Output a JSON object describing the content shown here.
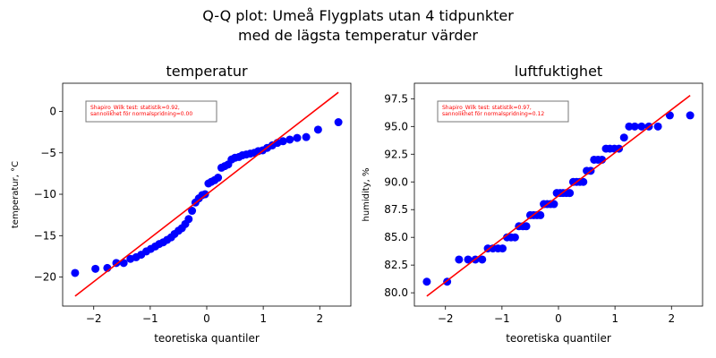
{
  "figure": {
    "title_line1": "Q-Q plot: Umeå Flygplats utan 4 tidpunkter",
    "title_line2": "med de lägsta temperatur värder"
  },
  "chart_data": [
    {
      "type": "scatter",
      "title": "temperatur",
      "xlabel": "teoretiska quantiler",
      "ylabel": "temperatur, °C",
      "xlim": [
        -2.55,
        2.55
      ],
      "ylim": [
        -23.5,
        3.4
      ],
      "xticks": [
        -2,
        -1,
        0,
        1,
        2
      ],
      "xtick_labels": [
        "−2",
        "−1",
        "0",
        "1",
        "2"
      ],
      "yticks": [
        -20,
        -15,
        -10,
        -5,
        0
      ],
      "ytick_labels": [
        "−20",
        "−15",
        "−10",
        "−5",
        "0"
      ],
      "annotation": [
        "Shapiro_Wilk test: statistik=0.92,",
        "sannolikhet för normalspridning=0.00"
      ],
      "fit_line": {
        "x": [
          -2.33,
          2.33
        ],
        "y": [
          -22.3,
          2.3
        ],
        "color": "#ff0000"
      },
      "point_color": "#0000ff",
      "points": [
        [
          -2.33,
          -19.5
        ],
        [
          -1.97,
          -19.0
        ],
        [
          -1.76,
          -18.9
        ],
        [
          -1.6,
          -18.3
        ],
        [
          -1.47,
          -18.3
        ],
        [
          -1.35,
          -17.8
        ],
        [
          -1.25,
          -17.6
        ],
        [
          -1.16,
          -17.3
        ],
        [
          -1.07,
          -16.9
        ],
        [
          -0.99,
          -16.6
        ],
        [
          -0.91,
          -16.3
        ],
        [
          -0.84,
          -16.0
        ],
        [
          -0.77,
          -15.8
        ],
        [
          -0.7,
          -15.5
        ],
        [
          -0.63,
          -15.2
        ],
        [
          -0.57,
          -14.8
        ],
        [
          -0.5,
          -14.4
        ],
        [
          -0.44,
          -14.1
        ],
        [
          -0.38,
          -13.6
        ],
        [
          -0.32,
          -13.0
        ],
        [
          -0.26,
          -12.0
        ],
        [
          -0.2,
          -11.0
        ],
        [
          -0.14,
          -10.5
        ],
        [
          -0.08,
          -10.1
        ],
        [
          -0.03,
          -10.0
        ],
        [
          0.03,
          -8.7
        ],
        [
          0.08,
          -8.5
        ],
        [
          0.14,
          -8.3
        ],
        [
          0.2,
          -8.0
        ],
        [
          0.26,
          -6.8
        ],
        [
          0.32,
          -6.6
        ],
        [
          0.38,
          -6.4
        ],
        [
          0.44,
          -5.8
        ],
        [
          0.5,
          -5.6
        ],
        [
          0.57,
          -5.5
        ],
        [
          0.63,
          -5.3
        ],
        [
          0.7,
          -5.2
        ],
        [
          0.77,
          -5.1
        ],
        [
          0.84,
          -5.0
        ],
        [
          0.91,
          -4.8
        ],
        [
          0.99,
          -4.7
        ],
        [
          1.07,
          -4.4
        ],
        [
          1.16,
          -4.1
        ],
        [
          1.25,
          -3.8
        ],
        [
          1.35,
          -3.6
        ],
        [
          1.47,
          -3.4
        ],
        [
          1.6,
          -3.2
        ],
        [
          1.76,
          -3.1
        ],
        [
          1.97,
          -2.2
        ],
        [
          2.33,
          -1.3
        ]
      ]
    },
    {
      "type": "scatter",
      "title": "luftfuktighet",
      "xlabel": "teoretiska quantiler",
      "ylabel": "humidity, %",
      "xlim": [
        -2.55,
        2.55
      ],
      "ylim": [
        78.8,
        98.9
      ],
      "xticks": [
        -2,
        -1,
        0,
        1,
        2
      ],
      "xtick_labels": [
        "−2",
        "−1",
        "0",
        "1",
        "2"
      ],
      "yticks": [
        80.0,
        82.5,
        85.0,
        87.5,
        90.0,
        92.5,
        95.0,
        97.5
      ],
      "ytick_labels": [
        "80.0",
        "82.5",
        "85.0",
        "87.5",
        "90.0",
        "92.5",
        "95.0",
        "97.5"
      ],
      "annotation": [
        "Shapiro_Wilk test: statistik=0.97,",
        "sannolikhet för normalspridning=0.12"
      ],
      "fit_line": {
        "x": [
          -2.33,
          2.33
        ],
        "y": [
          79.7,
          97.8
        ],
        "color": "#ff0000"
      },
      "point_color": "#0000ff",
      "points": [
        [
          -2.33,
          81
        ],
        [
          -1.97,
          81
        ],
        [
          -1.76,
          83
        ],
        [
          -1.6,
          83
        ],
        [
          -1.47,
          83
        ],
        [
          -1.35,
          83
        ],
        [
          -1.25,
          84
        ],
        [
          -1.16,
          84
        ],
        [
          -1.07,
          84
        ],
        [
          -0.99,
          84
        ],
        [
          -0.91,
          85
        ],
        [
          -0.84,
          85
        ],
        [
          -0.77,
          85
        ],
        [
          -0.7,
          86
        ],
        [
          -0.63,
          86
        ],
        [
          -0.57,
          86
        ],
        [
          -0.5,
          87
        ],
        [
          -0.44,
          87
        ],
        [
          -0.38,
          87
        ],
        [
          -0.32,
          87
        ],
        [
          -0.26,
          88
        ],
        [
          -0.2,
          88
        ],
        [
          -0.14,
          88
        ],
        [
          -0.08,
          88
        ],
        [
          -0.03,
          89
        ],
        [
          0.03,
          89
        ],
        [
          0.08,
          89
        ],
        [
          0.14,
          89
        ],
        [
          0.2,
          89
        ],
        [
          0.26,
          90
        ],
        [
          0.32,
          90
        ],
        [
          0.38,
          90
        ],
        [
          0.44,
          90
        ],
        [
          0.5,
          91
        ],
        [
          0.57,
          91
        ],
        [
          0.63,
          92
        ],
        [
          0.7,
          92
        ],
        [
          0.77,
          92
        ],
        [
          0.84,
          93
        ],
        [
          0.91,
          93
        ],
        [
          0.99,
          93
        ],
        [
          1.07,
          93
        ],
        [
          1.16,
          94
        ],
        [
          1.25,
          95
        ],
        [
          1.35,
          95
        ],
        [
          1.47,
          95
        ],
        [
          1.6,
          95
        ],
        [
          1.76,
          95
        ],
        [
          1.97,
          96
        ],
        [
          2.33,
          96
        ]
      ]
    }
  ]
}
